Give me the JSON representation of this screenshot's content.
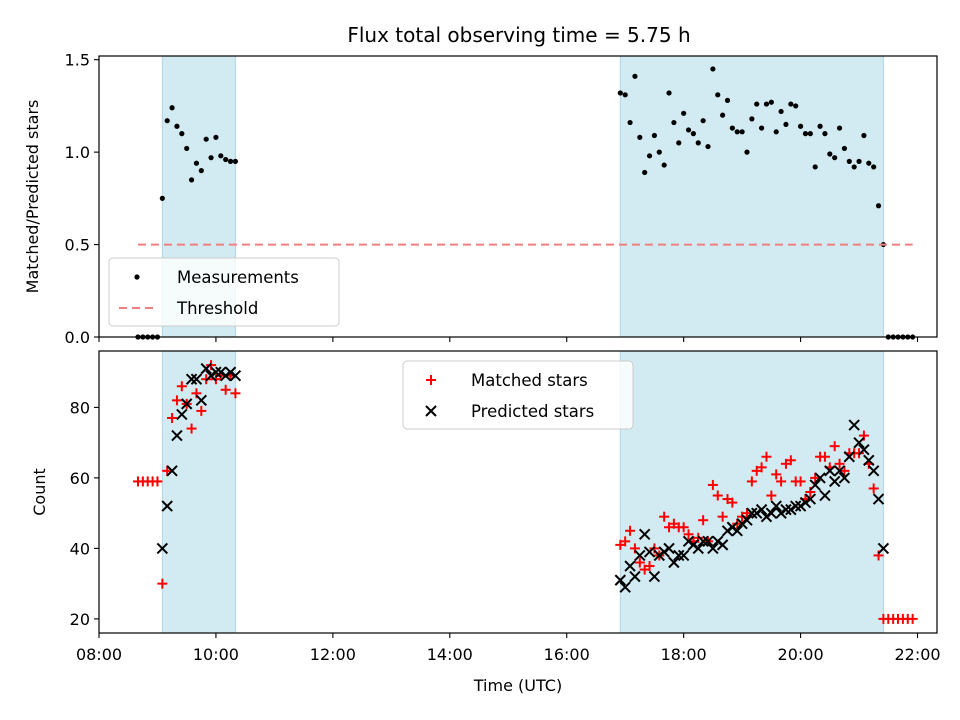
{
  "chart_data": [
    {
      "type": "scatter",
      "title": "Flux total observing time = 5.75 h",
      "xlabel": "",
      "ylabel": "Matched/Predicted stars",
      "xlim": [
        "08:00",
        "22:20"
      ],
      "ylim": [
        0,
        1.52
      ],
      "yticks": [
        0,
        0.5,
        1.0,
        1.5
      ],
      "ytick_labels": [
        "0.0",
        "0.5",
        "1.0",
        "1.5"
      ],
      "grid": false,
      "legend_position": "lower-left",
      "observing_windows": [
        [
          "09:05",
          "10:20"
        ],
        [
          "16:55",
          "21:25"
        ]
      ],
      "window_color": "#add8e6",
      "series": [
        {
          "name": "Measurements",
          "marker": "dot",
          "color": "#000000",
          "x": [
            "08:40",
            "08:45",
            "08:50",
            "08:55",
            "09:00",
            "09:05",
            "09:10",
            "09:15",
            "09:20",
            "09:25",
            "09:30",
            "09:35",
            "09:40",
            "09:45",
            "09:50",
            "09:55",
            "10:00",
            "10:05",
            "10:10",
            "10:15",
            "10:20",
            "16:55",
            "17:00",
            "17:05",
            "17:10",
            "17:15",
            "17:20",
            "17:25",
            "17:30",
            "17:35",
            "17:40",
            "17:45",
            "17:50",
            "17:55",
            "18:00",
            "18:05",
            "18:10",
            "18:15",
            "18:20",
            "18:25",
            "18:30",
            "18:35",
            "18:40",
            "18:45",
            "18:50",
            "18:55",
            "19:00",
            "19:05",
            "19:10",
            "19:15",
            "19:20",
            "19:25",
            "19:30",
            "19:35",
            "19:40",
            "19:45",
            "19:50",
            "19:55",
            "20:00",
            "20:05",
            "20:10",
            "20:15",
            "20:20",
            "20:25",
            "20:30",
            "20:35",
            "20:40",
            "20:45",
            "20:50",
            "20:55",
            "21:00",
            "21:05",
            "21:10",
            "21:15",
            "21:20",
            "21:25",
            "21:30",
            "21:35",
            "21:40",
            "21:45",
            "21:50",
            "21:55"
          ],
          "y": [
            0,
            0,
            0,
            0,
            0,
            0.75,
            1.17,
            1.24,
            1.14,
            1.1,
            1.02,
            0.85,
            0.94,
            0.9,
            1.07,
            0.97,
            1.08,
            0.98,
            0.96,
            0.95,
            0.95,
            1.32,
            1.31,
            1.16,
            1.41,
            1.08,
            0.89,
            0.98,
            1.09,
            1.0,
            0.93,
            1.32,
            1.16,
            1.05,
            1.21,
            1.12,
            1.1,
            1.05,
            1.17,
            1.03,
            1.45,
            1.31,
            1.2,
            1.28,
            1.13,
            1.11,
            1.11,
            1.0,
            1.18,
            1.26,
            1.13,
            1.26,
            1.27,
            1.11,
            1.22,
            1.15,
            1.26,
            1.25,
            1.14,
            1.1,
            1.1,
            0.92,
            1.14,
            1.1,
            0.99,
            0.97,
            1.13,
            1.02,
            0.95,
            0.92,
            0.95,
            1.09,
            0.94,
            0.92,
            0.71,
            0.5,
            0,
            0,
            0,
            0,
            0,
            0
          ]
        },
        {
          "name": "Threshold",
          "marker": "dashed-line",
          "color": "#f08080",
          "x": [
            "08:40",
            "21:55"
          ],
          "y": [
            0.5,
            0.5
          ]
        }
      ]
    },
    {
      "type": "scatter",
      "title": "",
      "xlabel": "Time (UTC)",
      "ylabel": "Count",
      "xlim": [
        "08:00",
        "22:20"
      ],
      "ylim": [
        16,
        96
      ],
      "yticks": [
        20,
        40,
        60,
        80
      ],
      "xticks": [
        "08:00",
        "10:00",
        "12:00",
        "14:00",
        "16:00",
        "18:00",
        "20:00",
        "22:00"
      ],
      "grid": false,
      "legend_position": "upper-center",
      "observing_windows": [
        [
          "09:05",
          "10:20"
        ],
        [
          "16:55",
          "21:25"
        ]
      ],
      "window_color": "#add8e6",
      "series": [
        {
          "name": "Matched stars",
          "marker": "plus",
          "color": "#ff0000",
          "x": [
            "08:40",
            "08:45",
            "08:50",
            "08:55",
            "09:00",
            "09:05",
            "09:10",
            "09:15",
            "09:20",
            "09:25",
            "09:30",
            "09:35",
            "09:40",
            "09:45",
            "09:50",
            "09:55",
            "10:00",
            "10:05",
            "10:10",
            "10:15",
            "10:20",
            "16:55",
            "17:00",
            "17:05",
            "17:10",
            "17:15",
            "17:20",
            "17:25",
            "17:30",
            "17:35",
            "17:40",
            "17:45",
            "17:50",
            "17:55",
            "18:00",
            "18:05",
            "18:10",
            "18:15",
            "18:20",
            "18:25",
            "18:30",
            "18:35",
            "18:40",
            "18:45",
            "18:50",
            "18:55",
            "19:00",
            "19:05",
            "19:10",
            "19:15",
            "19:20",
            "19:25",
            "19:30",
            "19:35",
            "19:40",
            "19:45",
            "19:50",
            "19:55",
            "20:00",
            "20:05",
            "20:10",
            "20:15",
            "20:20",
            "20:25",
            "20:30",
            "20:35",
            "20:40",
            "20:45",
            "20:50",
            "20:55",
            "21:00",
            "21:05",
            "21:10",
            "21:15",
            "21:20",
            "21:25",
            "21:30",
            "21:35",
            "21:40",
            "21:45",
            "21:50",
            "21:55"
          ],
          "y": [
            59,
            59,
            59,
            59,
            59,
            30,
            62,
            77,
            82,
            86,
            81,
            74,
            84,
            79,
            88,
            92,
            88,
            89,
            85,
            89,
            84,
            41,
            42,
            45,
            40,
            36,
            34,
            35,
            40,
            38,
            49,
            46,
            47,
            46,
            46,
            44,
            42,
            43,
            48,
            42,
            58,
            55,
            49,
            54,
            53,
            47,
            49,
            50,
            59,
            62,
            63,
            66,
            55,
            61,
            59,
            64,
            65,
            59,
            59,
            54,
            56,
            60,
            66,
            66,
            63,
            69,
            64,
            62,
            67,
            67,
            67,
            72,
            64,
            57,
            38,
            20,
            20,
            20,
            20,
            20,
            20,
            20
          ]
        },
        {
          "name": "Predicted stars",
          "marker": "x",
          "color": "#000000",
          "x": [
            "09:05",
            "09:10",
            "09:15",
            "09:20",
            "09:25",
            "09:30",
            "09:35",
            "09:40",
            "09:45",
            "09:50",
            "09:55",
            "10:00",
            "10:05",
            "10:10",
            "10:15",
            "10:20",
            "16:55",
            "17:00",
            "17:05",
            "17:10",
            "17:15",
            "17:20",
            "17:25",
            "17:30",
            "17:35",
            "17:40",
            "17:45",
            "17:50",
            "17:55",
            "18:00",
            "18:05",
            "18:10",
            "18:15",
            "18:20",
            "18:25",
            "18:30",
            "18:35",
            "18:40",
            "18:45",
            "18:50",
            "18:55",
            "19:00",
            "19:05",
            "19:10",
            "19:15",
            "19:20",
            "19:25",
            "19:30",
            "19:35",
            "19:40",
            "19:45",
            "19:50",
            "19:55",
            "20:00",
            "20:05",
            "20:10",
            "20:15",
            "20:20",
            "20:25",
            "20:30",
            "20:35",
            "20:40",
            "20:45",
            "20:50",
            "20:55",
            "21:00",
            "21:05",
            "21:10",
            "21:15",
            "21:20",
            "21:25"
          ],
          "y": [
            40,
            52,
            62,
            72,
            78,
            81,
            88,
            88,
            82,
            91,
            89,
            90,
            90,
            89,
            90,
            89,
            31,
            29,
            35,
            32,
            38,
            44,
            39,
            32,
            38,
            39,
            40,
            36,
            38,
            38,
            42,
            41,
            40,
            42,
            42,
            40,
            42,
            41,
            45,
            46,
            45,
            47,
            48,
            50,
            50,
            51,
            49,
            50,
            52,
            50,
            51,
            51,
            52,
            52,
            53,
            54,
            58,
            60,
            55,
            62,
            59,
            62,
            60,
            66,
            75,
            70,
            68,
            65,
            62,
            54,
            40
          ]
        }
      ]
    }
  ]
}
